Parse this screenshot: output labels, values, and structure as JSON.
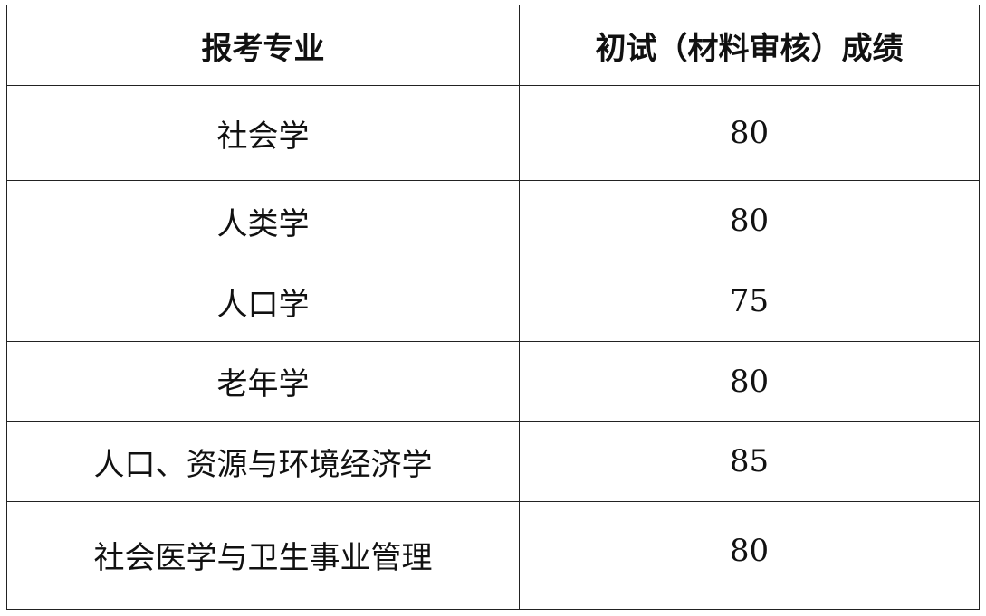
{
  "table": {
    "headers": [
      "报考专业",
      "初试（材料审核）成绩"
    ],
    "rows": [
      {
        "major": "社会学",
        "score": "80"
      },
      {
        "major": "人类学",
        "score": "80"
      },
      {
        "major": "人口学",
        "score": "75"
      },
      {
        "major": "老年学",
        "score": "80"
      },
      {
        "major": "人口、资源与环境经济学",
        "score": "85"
      },
      {
        "major": "社会医学与卫生事业管理",
        "score": "80"
      }
    ]
  }
}
